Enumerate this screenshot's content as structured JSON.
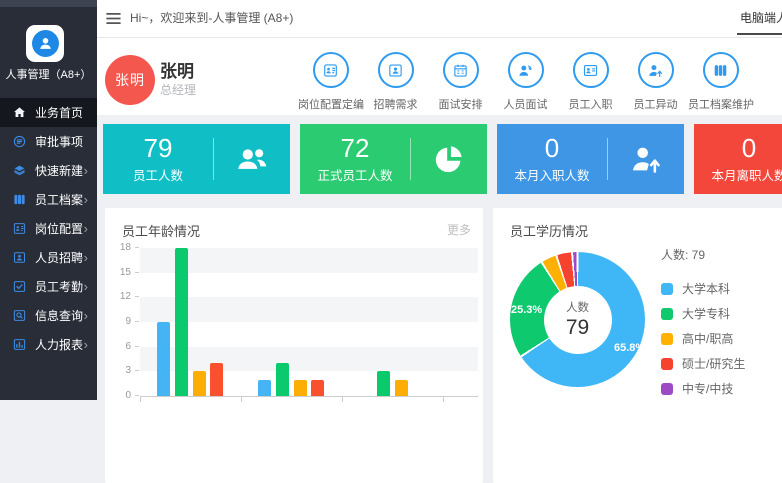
{
  "app": {
    "logo_label": "人事管理（A8+）",
    "logo_icon": "person-icon"
  },
  "topbar": {
    "menu_icon": "hamburger-icon",
    "welcome": "Hi~，欢迎来到-人事管理 (A8+)",
    "device_tab": "电脑端人事管理"
  },
  "user": {
    "avatar_text": "张明",
    "name": "张明",
    "role": "总经理",
    "avatar_color": "#f4574d"
  },
  "sidebar": {
    "items": [
      {
        "id": "home",
        "label": "业务首页",
        "icon": "home-icon",
        "active": true,
        "chevron": false
      },
      {
        "id": "approval",
        "label": "审批事项",
        "icon": "approval-icon",
        "active": false,
        "chevron": false
      },
      {
        "id": "quick-create",
        "label": "快速新建",
        "icon": "cube-icon",
        "active": false,
        "chevron": true
      },
      {
        "id": "employee-archive",
        "label": "员工档案",
        "icon": "archive-icon",
        "active": false,
        "chevron": true
      },
      {
        "id": "post-config",
        "label": "岗位配置",
        "icon": "badge-icon",
        "active": false,
        "chevron": true
      },
      {
        "id": "recruitment",
        "label": "人员招聘",
        "icon": "person-card-icon",
        "active": false,
        "chevron": true
      },
      {
        "id": "attendance",
        "label": "员工考勤",
        "icon": "attendance-icon",
        "active": false,
        "chevron": true
      },
      {
        "id": "info-query",
        "label": "信息查询",
        "icon": "search-icon",
        "active": false,
        "chevron": true
      },
      {
        "id": "hr-report",
        "label": "人力报表",
        "icon": "report-icon",
        "active": false,
        "chevron": true
      }
    ]
  },
  "quick_actions": [
    {
      "id": "post-config-staffing",
      "label": "岗位配置定编",
      "icon": "badge-icon"
    },
    {
      "id": "recruit-demand",
      "label": "招聘需求",
      "icon": "person-card-icon"
    },
    {
      "id": "interview-schedule",
      "label": "面试安排",
      "icon": "calendar-icon"
    },
    {
      "id": "personnel-interview",
      "label": "人员面试",
      "icon": "interview-icon"
    },
    {
      "id": "employee-onboard",
      "label": "员工入职",
      "icon": "id-card-icon"
    },
    {
      "id": "employee-transfer",
      "label": "员工异动",
      "icon": "person-up-icon"
    },
    {
      "id": "archive-maintenance",
      "label": "员工档案维护",
      "icon": "archive-icon"
    }
  ],
  "stat_cards": [
    {
      "id": "total-employees",
      "value": "79",
      "label": "员工人数",
      "color": "#0fbfc5",
      "icon": "people-group-icon"
    },
    {
      "id": "regular-employees",
      "value": "72",
      "label": "正式员工人数",
      "color": "#2bcb72",
      "icon": "pie-icon"
    },
    {
      "id": "month-onboard",
      "value": "0",
      "label": "本月入职人数",
      "color": "#3e96e5",
      "icon": "person-up-icon"
    },
    {
      "id": "month-resign",
      "value": "0",
      "label": "本月离职人数",
      "color": "#f4473b",
      "icon": null
    }
  ],
  "panels": {
    "age": {
      "title": "员工年龄情况",
      "more": "更多"
    },
    "edu": {
      "title": "员工学历情况"
    }
  },
  "chart_data": [
    {
      "type": "bar",
      "title": "员工年龄情况",
      "categories": [
        "",
        "",
        ""
      ],
      "categories_note": "x-axis labels cut off at bottom of screenshot",
      "series": [
        {
          "name": "series-blue",
          "color": "#45b4f5",
          "values": [
            9,
            2,
            0
          ]
        },
        {
          "name": "series-green",
          "color": "#0bc96d",
          "values": [
            18,
            4,
            3
          ]
        },
        {
          "name": "series-orange",
          "color": "#fdae06",
          "values": [
            3,
            2,
            2
          ]
        },
        {
          "name": "series-red",
          "color": "#f9502e",
          "values": [
            4,
            2,
            0
          ]
        }
      ],
      "ylim": [
        0,
        18
      ],
      "yticks": [
        0,
        3,
        6,
        9,
        12,
        15,
        18
      ],
      "grid": "alternating horizontal split-area bands",
      "legend_position": "none"
    },
    {
      "type": "pie",
      "title": "员工学历情况",
      "donut": true,
      "center_label": "人数",
      "center_value": "79",
      "legend_header": "人数: 79",
      "legend_position": "right",
      "slices": [
        {
          "label": "大学本科",
          "pct": 65.8,
          "color": "#3fb6f6",
          "pct_label": "65.8%"
        },
        {
          "label": "大学专科",
          "pct": 25.3,
          "color": "#0ec96e",
          "pct_label": "25.3%"
        },
        {
          "label": "高中/职高",
          "pct": 3.8,
          "color": "#ffb000",
          "pct_label": ""
        },
        {
          "label": "硕士/研究生",
          "pct": 3.8,
          "color": "#f5432e",
          "pct_label": ""
        },
        {
          "label": "中专/中技",
          "pct": 1.3,
          "color": "#9d4bc4",
          "pct_label": ""
        }
      ]
    }
  ],
  "colors": {
    "sidebar_bg": "#282d37",
    "sidebar_active_bg": "#14171d",
    "sidebar_icon": "#3d8be4",
    "accent_blue": "#2e9bf0",
    "page_bg": "#eef0f4"
  }
}
